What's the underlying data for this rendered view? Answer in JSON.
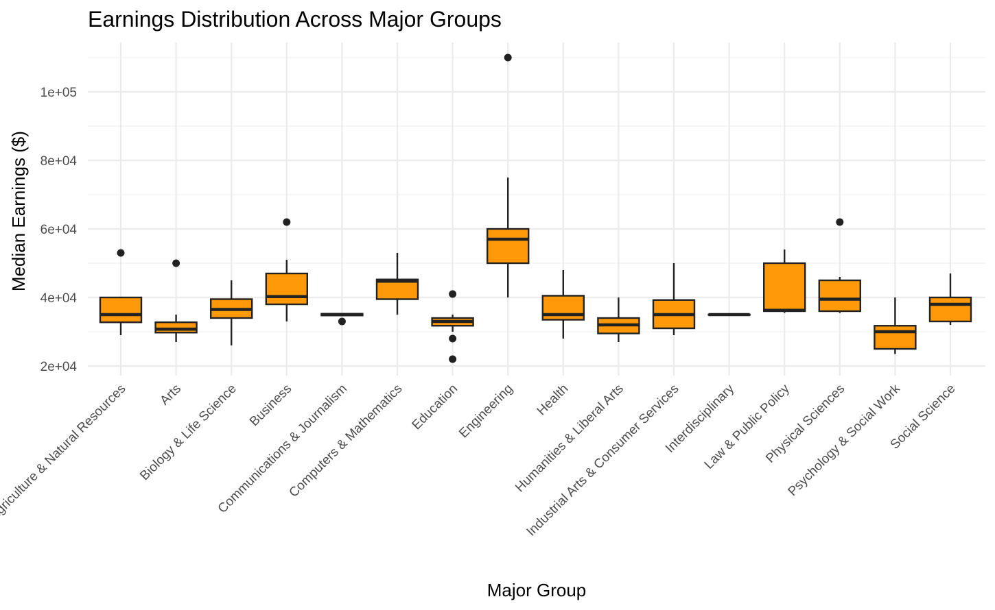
{
  "chart_data": {
    "type": "boxplot",
    "title": "Earnings Distribution Across Major Groups",
    "xlabel": "Major Group",
    "ylabel": "Median Earnings ($)",
    "ylim": [
      15500,
      115000
    ],
    "y_ticks": [
      20000,
      40000,
      60000,
      80000,
      100000
    ],
    "y_tick_labels": [
      "2e+04",
      "4e+04",
      "6e+04",
      "8e+04",
      "1e+05"
    ],
    "grid": true,
    "legend": "none",
    "box_fill": "#FF9909",
    "box_outline": "#222222",
    "x_tick_angle": 45,
    "categories": [
      "Agriculture & Natural Resources",
      "Arts",
      "Biology & Life Science",
      "Business",
      "Communications & Journalism",
      "Computers & Mathematics",
      "Education",
      "Engineering",
      "Health",
      "Humanities & Liberal Arts",
      "Industrial Arts & Consumer Services",
      "Interdisciplinary",
      "Law & Public Policy",
      "Physical Sciences",
      "Psychology & Social Work",
      "Social Science"
    ],
    "boxes": [
      {
        "min": 29000,
        "q1": 32750,
        "median": 35000,
        "q3": 40000,
        "max": 40000,
        "outliers": [
          53000
        ]
      },
      {
        "min": 27000,
        "q1": 29750,
        "median": 30750,
        "q3": 32750,
        "max": 35000,
        "outliers": [
          50000
        ]
      },
      {
        "min": 26000,
        "q1": 34000,
        "median": 36500,
        "q3": 39500,
        "max": 45000,
        "outliers": []
      },
      {
        "min": 33000,
        "q1": 38000,
        "median": 40250,
        "q3": 47000,
        "max": 51000,
        "outliers": [
          62000
        ]
      },
      {
        "min": 34500,
        "q1": 34750,
        "median": 35000,
        "q3": 35250,
        "max": 35500,
        "outliers": [
          33000
        ]
      },
      {
        "min": 35000,
        "q1": 39500,
        "median": 44750,
        "q3": 45250,
        "max": 53000,
        "outliers": []
      },
      {
        "min": 30000,
        "q1": 31750,
        "median": 33000,
        "q3": 34000,
        "max": 35000,
        "outliers": [
          41000,
          28000,
          22000
        ]
      },
      {
        "min": 40000,
        "q1": 50000,
        "median": 57000,
        "q3": 60000,
        "max": 75000,
        "outliers": [
          110000
        ]
      },
      {
        "min": 28000,
        "q1": 33500,
        "median": 35000,
        "q3": 40500,
        "max": 48000,
        "outliers": []
      },
      {
        "min": 27000,
        "q1": 29500,
        "median": 32000,
        "q3": 34000,
        "max": 40000,
        "outliers": []
      },
      {
        "min": 29000,
        "q1": 31000,
        "median": 35000,
        "q3": 39250,
        "max": 50000,
        "outliers": []
      },
      {
        "min": 35000,
        "q1": 35000,
        "median": 35000,
        "q3": 35000,
        "max": 35000,
        "outliers": []
      },
      {
        "min": 35500,
        "q1": 36000,
        "median": 36250,
        "q3": 50000,
        "max": 54000,
        "outliers": []
      },
      {
        "min": 35500,
        "q1": 36000,
        "median": 39500,
        "q3": 45000,
        "max": 46000,
        "outliers": [
          62000
        ]
      },
      {
        "min": 23500,
        "q1": 25000,
        "median": 30000,
        "q3": 31750,
        "max": 40000,
        "outliers": []
      },
      {
        "min": 32000,
        "q1": 33000,
        "median": 38000,
        "q3": 40000,
        "max": 47000,
        "outliers": []
      }
    ]
  }
}
